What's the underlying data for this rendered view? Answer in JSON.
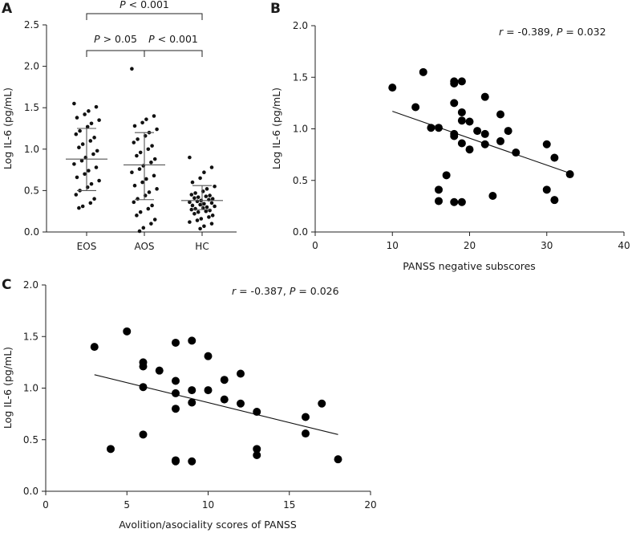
{
  "chart_data": [
    {
      "panel": "A",
      "type": "scatter",
      "subtype": "dot-strip",
      "categories": [
        "EOS",
        "AOS",
        "HC"
      ],
      "ylabel": "Log IL-6 (pg/mL)",
      "ylim": [
        0,
        2.5
      ],
      "yticks": [
        0,
        0.5,
        1.0,
        1.5,
        2.0,
        2.5
      ],
      "ytick_labels": [
        "0.0",
        "0.5",
        "1.0",
        "1.5",
        "2.0",
        "2.5"
      ],
      "summary": [
        {
          "category": "EOS",
          "mean": 0.88,
          "sd_low": 0.5,
          "sd_high": 1.25
        },
        {
          "category": "AOS",
          "mean": 0.81,
          "sd_low": 0.39,
          "sd_high": 1.2
        },
        {
          "category": "HC",
          "mean": 0.38,
          "sd_low": 0.27,
          "sd_high": 0.56
        }
      ],
      "points": {
        "EOS": [
          1.55,
          1.51,
          1.46,
          1.42,
          1.38,
          1.35,
          1.31,
          1.27,
          1.22,
          1.18,
          1.14,
          1.1,
          1.06,
          1.02,
          0.98,
          0.94,
          0.9,
          0.86,
          0.82,
          0.78,
          0.74,
          0.7,
          0.66,
          0.62,
          0.58,
          0.54,
          0.5,
          0.45,
          0.4,
          0.35,
          0.31,
          0.29
        ],
        "AOS": [
          1.97,
          1.4,
          1.36,
          1.32,
          1.28,
          1.24,
          1.2,
          1.16,
          1.12,
          1.08,
          1.04,
          1.0,
          0.96,
          0.92,
          0.88,
          0.84,
          0.8,
          0.76,
          0.72,
          0.68,
          0.64,
          0.6,
          0.56,
          0.52,
          0.48,
          0.44,
          0.4,
          0.36,
          0.32,
          0.28,
          0.24,
          0.2,
          0.15,
          0.1,
          0.05,
          0.01
        ],
        "HC": [
          0.9,
          0.78,
          0.72,
          0.65,
          0.6,
          0.55,
          0.52,
          0.49,
          0.47,
          0.45,
          0.44,
          0.43,
          0.42,
          0.41,
          0.4,
          0.39,
          0.38,
          0.37,
          0.36,
          0.35,
          0.34,
          0.33,
          0.32,
          0.31,
          0.3,
          0.29,
          0.28,
          0.27,
          0.26,
          0.25,
          0.24,
          0.22,
          0.2,
          0.18,
          0.16,
          0.14,
          0.12,
          0.1,
          0.07,
          0.04
        ]
      },
      "comparisons": [
        {
          "from": "EOS",
          "to": "AOS",
          "label": "P > 0.05"
        },
        {
          "from": "AOS",
          "to": "HC",
          "label": "P < 0.001"
        },
        {
          "from": "EOS",
          "to": "HC",
          "label": "P < 0.001"
        }
      ]
    },
    {
      "panel": "B",
      "type": "scatter",
      "xlabel": "PANSS negative subscores",
      "ylabel": "Log IL-6 (pg/mL)",
      "xlim": [
        0,
        40
      ],
      "ylim": [
        0,
        2.0
      ],
      "xticks": [
        0,
        10,
        20,
        30,
        40
      ],
      "xtick_labels": [
        "0",
        "10",
        "20",
        "30",
        "40"
      ],
      "yticks": [
        0,
        0.5,
        1.0,
        1.5,
        2.0
      ],
      "ytick_labels": [
        "0.0",
        "0.5",
        "1.0",
        "1.5",
        "2.0"
      ],
      "annotation": {
        "r_label": "r",
        "r_text": " = -0.389, ",
        "p_label": "P",
        "p_text": " = 0.032"
      },
      "x": [
        10,
        13,
        14,
        15,
        16,
        18,
        18,
        18,
        19,
        18,
        19,
        19,
        20,
        19,
        20,
        18,
        21,
        22,
        22,
        22,
        24,
        24,
        25,
        26,
        16,
        16,
        17,
        18,
        19,
        23,
        30,
        31,
        30,
        31,
        33
      ],
      "y": [
        1.4,
        1.21,
        1.55,
        1.01,
        1.01,
        1.44,
        1.46,
        1.25,
        1.46,
        0.95,
        1.16,
        1.08,
        1.07,
        0.86,
        0.8,
        0.93,
        0.98,
        1.31,
        0.95,
        0.85,
        1.14,
        0.88,
        0.98,
        0.77,
        0.41,
        0.3,
        0.55,
        0.29,
        0.29,
        0.35,
        0.85,
        0.72,
        0.41,
        0.31,
        0.56
      ],
      "fit": {
        "x": [
          10,
          33
        ],
        "y": [
          1.17,
          0.57
        ]
      }
    },
    {
      "panel": "C",
      "type": "scatter",
      "xlabel": "Avolition/asociality scores of PANSS",
      "ylabel": "Log IL-6 (pg/mL)",
      "xlim": [
        0,
        20
      ],
      "ylim": [
        0,
        2.0
      ],
      "xticks": [
        0,
        5,
        10,
        15,
        20
      ],
      "xtick_labels": [
        "0",
        "5",
        "10",
        "15",
        "20"
      ],
      "yticks": [
        0,
        0.5,
        1.0,
        1.5,
        2.0
      ],
      "ytick_labels": [
        "0.0",
        "0.5",
        "1.0",
        "1.5",
        "2.0"
      ],
      "annotation": {
        "r_label": "r",
        "r_text": " = -0.387, ",
        "p_label": "P",
        "p_text": " = 0.026"
      },
      "x": [
        3,
        5,
        6,
        6,
        6,
        7,
        8,
        8,
        8,
        8,
        9,
        9,
        9,
        10,
        10,
        11,
        11,
        12,
        12,
        13,
        4,
        6,
        8,
        8,
        9,
        13,
        13,
        16,
        16,
        17,
        18
      ],
      "y": [
        1.4,
        1.55,
        1.25,
        1.21,
        1.01,
        1.17,
        1.44,
        1.07,
        0.95,
        0.8,
        1.46,
        0.98,
        0.86,
        1.31,
        0.98,
        1.08,
        0.89,
        1.14,
        0.85,
        0.77,
        0.41,
        0.55,
        0.3,
        0.29,
        0.29,
        0.41,
        0.35,
        0.72,
        0.56,
        0.85,
        0.31
      ],
      "fit": {
        "x": [
          3,
          18
        ],
        "y": [
          1.13,
          0.55
        ]
      }
    }
  ]
}
